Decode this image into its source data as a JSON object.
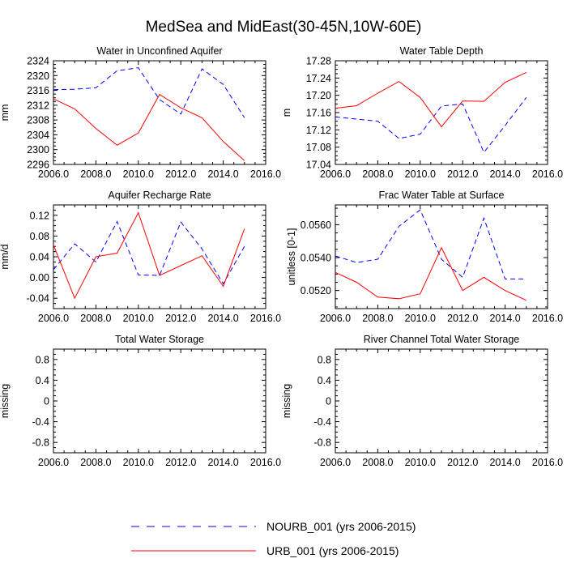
{
  "title": "MedSea and MidEast(30-45N,10W-60E)",
  "colors": {
    "nourb": "#0000ff",
    "urb": "#ff0000",
    "axis": "#000000",
    "background": "#ffffff"
  },
  "legend": {
    "items": [
      {
        "label": "NOURB_001 (yrs 2006-2015)",
        "color": "#0000ff",
        "style": "dashed"
      },
      {
        "label": "URB_001 (yrs 2006-2015)",
        "color": "#ff0000",
        "style": "solid"
      }
    ]
  },
  "chart_data": [
    {
      "type": "line",
      "title": "Water in Unconfined Aquifer",
      "ylabel": "mm",
      "xlim": [
        2006,
        2016
      ],
      "xticks": [
        "2006.0",
        "2008.0",
        "2010.0",
        "2012.0",
        "2014.0",
        "2016.0"
      ],
      "ylim": [
        2296,
        2324
      ],
      "yticks": [
        "2296",
        "2300",
        "2304",
        "2308",
        "2312",
        "2316",
        "2320",
        "2324"
      ],
      "x": [
        2006,
        2007,
        2008,
        2009,
        2010,
        2011,
        2012,
        2013,
        2014,
        2015
      ],
      "series": [
        {
          "name": "NOURB_001",
          "values": [
            2316.2,
            2316.3,
            2316.7,
            2321.3,
            2322.1,
            2313.5,
            2309.6,
            2321.8,
            2317.6,
            2308.6
          ]
        },
        {
          "name": "URB_001",
          "values": [
            2313.7,
            2311.0,
            2305.7,
            2301.2,
            2304.5,
            2314.9,
            2311.3,
            2308.6,
            2302.2,
            2297.0
          ]
        }
      ]
    },
    {
      "type": "line",
      "title": "Water Table Depth",
      "ylabel": "m",
      "xlim": [
        2006,
        2016
      ],
      "xticks": [
        "2006.0",
        "2008.0",
        "2010.0",
        "2012.0",
        "2014.0",
        "2016.0"
      ],
      "ylim": [
        17.04,
        17.28
      ],
      "yticks": [
        "17.04",
        "17.08",
        "17.12",
        "17.16",
        "17.20",
        "17.24",
        "17.28"
      ],
      "x": [
        2006,
        2007,
        2008,
        2009,
        2010,
        2011,
        2012,
        2013,
        2014,
        2015
      ],
      "series": [
        {
          "name": "NOURB_001",
          "values": [
            17.15,
            17.145,
            17.14,
            17.1,
            17.11,
            17.175,
            17.18,
            17.068,
            17.13,
            17.195
          ]
        },
        {
          "name": "URB_001",
          "values": [
            17.17,
            17.176,
            17.205,
            17.232,
            17.195,
            17.127,
            17.187,
            17.186,
            17.23,
            17.253
          ]
        }
      ]
    },
    {
      "type": "line",
      "title": "Aquifer Recharge Rate",
      "ylabel": "mm/d",
      "xlim": [
        2006,
        2016
      ],
      "xticks": [
        "2006.0",
        "2008.0",
        "2010.0",
        "2012.0",
        "2014.0",
        "2016.0"
      ],
      "ylim": [
        -0.06,
        0.14
      ],
      "yticks": [
        "-0.04",
        "0.00",
        "0.04",
        "0.08",
        "0.12"
      ],
      "ytickvalues": [
        -0.04,
        0.0,
        0.04,
        0.08,
        0.12
      ],
      "x": [
        2006,
        2007,
        2008,
        2009,
        2010,
        2011,
        2012,
        2013,
        2014,
        2015
      ],
      "series": [
        {
          "name": "NOURB_001",
          "values": [
            0.015,
            0.065,
            0.03,
            0.108,
            0.005,
            0.004,
            0.107,
            0.055,
            -0.012,
            0.06
          ]
        },
        {
          "name": "URB_001",
          "values": [
            0.063,
            -0.04,
            0.04,
            0.047,
            0.125,
            0.004,
            0.023,
            0.042,
            -0.017,
            0.094
          ]
        }
      ]
    },
    {
      "type": "line",
      "title": "Frac Water Table at Surface",
      "ylabel": "unitless [0-1]",
      "xlim": [
        2006,
        2016
      ],
      "xticks": [
        "2006.0",
        "2008.0",
        "2010.0",
        "2012.0",
        "2014.0",
        "2016.0"
      ],
      "ylim": [
        0.0509,
        0.0572
      ],
      "yticks": [
        "0.0520",
        "0.0540",
        "0.0560"
      ],
      "ytickvalues": [
        0.052,
        0.054,
        0.056
      ],
      "x": [
        2006,
        2007,
        2008,
        2009,
        2010,
        2011,
        2012,
        2013,
        2014,
        2015
      ],
      "series": [
        {
          "name": "NOURB_001",
          "values": [
            0.0541,
            0.0537,
            0.0539,
            0.0559,
            0.0569,
            0.0539,
            0.0528,
            0.0564,
            0.0527,
            0.0527
          ]
        },
        {
          "name": "URB_001",
          "values": [
            0.0531,
            0.0525,
            0.0516,
            0.0515,
            0.0518,
            0.0546,
            0.052,
            0.0528,
            0.052,
            0.0514
          ]
        }
      ]
    },
    {
      "type": "line",
      "title": "Total Water Storage",
      "ylabel": "missing",
      "xlim": [
        2006,
        2016
      ],
      "xticks": [
        "2006.0",
        "2008.0",
        "2010.0",
        "2012.0",
        "2014.0",
        "2016.0"
      ],
      "ylim": [
        -1.0,
        1.0
      ],
      "yticks": [
        "-0.8",
        "-0.4",
        "0",
        "0.4",
        "0.8"
      ],
      "ytickvalues": [
        -0.8,
        -0.4,
        0,
        0.4,
        0.8
      ],
      "x": [],
      "series": []
    },
    {
      "type": "line",
      "title": "River Channel Total Water Storage",
      "ylabel": "missing",
      "xlim": [
        2006,
        2016
      ],
      "xticks": [
        "2006.0",
        "2008.0",
        "2010.0",
        "2012.0",
        "2014.0",
        "2016.0"
      ],
      "ylim": [
        -1.0,
        1.0
      ],
      "yticks": [
        "-0.8",
        "-0.4",
        "0",
        "0.4",
        "0.8"
      ],
      "ytickvalues": [
        -0.8,
        -0.4,
        0,
        0.4,
        0.8
      ],
      "x": [],
      "series": []
    }
  ]
}
